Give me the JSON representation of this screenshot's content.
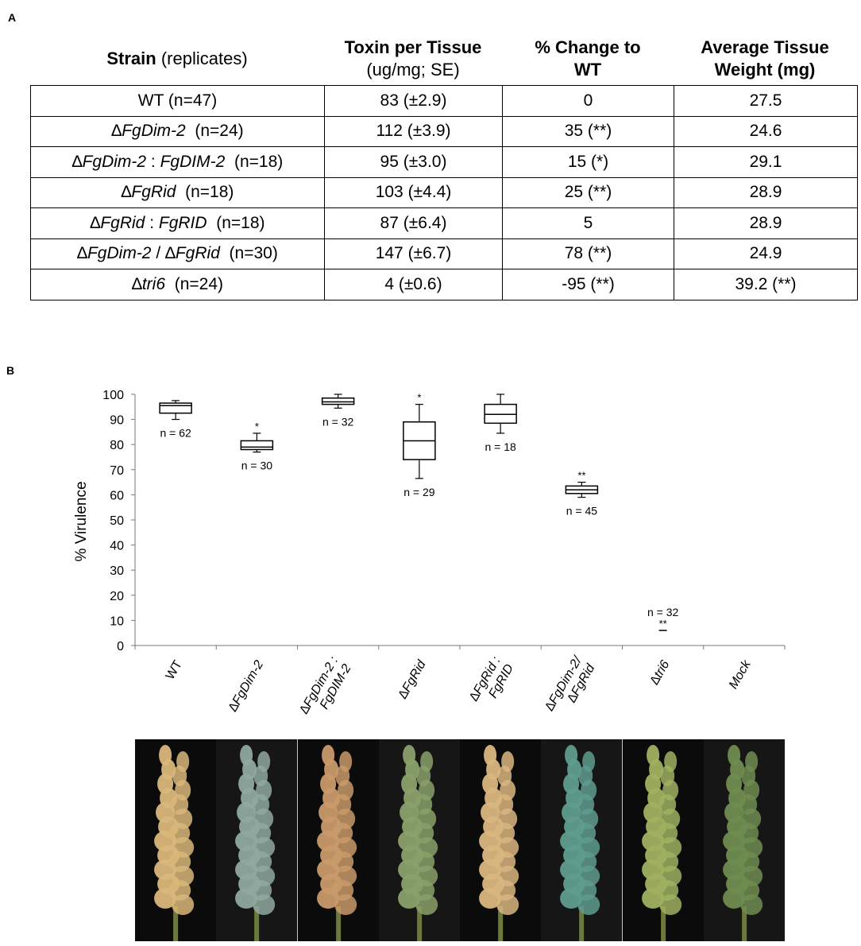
{
  "panel_a": {
    "label": "A",
    "headers": {
      "strain": "Strain",
      "strain_sub": " (replicates)",
      "toxin": "Toxin per Tissue",
      "toxin_sub": "(ug/mg; SE)",
      "change_line1": "% Change to",
      "change_line2": "WT",
      "weight_line1": "Average Tissue",
      "weight_line2": "Weight (mg)"
    },
    "rows": [
      {
        "strain": "WT (n=47)",
        "toxin": "83 (±2.9)",
        "change": "0",
        "weight": "27.5"
      },
      {
        "strain_parts": [
          "∆",
          "FgDim-2",
          "  (n=24)"
        ],
        "toxin": "112 (±3.9)",
        "change": "35 (**)",
        "weight": "24.6"
      },
      {
        "strain_parts": [
          "∆",
          "FgDim-2",
          " : ",
          "FgDIM-2",
          "  (n=18)"
        ],
        "toxin": "95 (±3.0)",
        "change": "15 (*)",
        "weight": "29.1"
      },
      {
        "strain_parts": [
          "∆",
          "FgRid",
          "  (n=18)"
        ],
        "toxin": "103 (±4.4)",
        "change": "25 (**)",
        "weight": "28.9"
      },
      {
        "strain_parts": [
          "∆",
          "FgRid",
          " : ",
          "FgRID",
          "  (n=18)"
        ],
        "toxin": "87 (±6.4)",
        "change": "5",
        "weight": "28.9"
      },
      {
        "strain_parts": [
          "∆",
          "FgDim-2 ",
          "/ ∆",
          "FgRid",
          "  (n=30)"
        ],
        "toxin": "147 (±6.7)",
        "change": "78 (**)",
        "weight": "24.9"
      },
      {
        "strain_parts": [
          "∆",
          "tri6",
          "  (n=24)"
        ],
        "toxin": "4 (±0.6)",
        "change": "-95 (**)",
        "weight": "39.2 (**)"
      }
    ]
  },
  "panel_b": {
    "label": "B"
  },
  "chart_data": {
    "type": "box",
    "ylabel": "% Virulence",
    "ylim": [
      0,
      100
    ],
    "yticks": [
      0,
      10,
      20,
      30,
      40,
      50,
      60,
      70,
      80,
      90,
      100
    ],
    "categories": [
      {
        "label": "WT",
        "lines": [
          "WT"
        ]
      },
      {
        "label": "∆FgDim-2",
        "lines": [
          "∆FgDim-2"
        ]
      },
      {
        "label": "∆FgDim-2 : FgDIM-2",
        "lines": [
          "∆FgDim-2 :",
          "FgDIM-2"
        ]
      },
      {
        "label": "∆FgRid",
        "lines": [
          "∆FgRid"
        ]
      },
      {
        "label": "∆FgRid : FgRID",
        "lines": [
          "∆FgRid :",
          "FgRID"
        ]
      },
      {
        "label": "∆FgDim-2/ ∆FgRid",
        "lines": [
          "∆FgDim-2/",
          "∆FgRid"
        ]
      },
      {
        "label": "∆tri6",
        "lines": [
          "∆tri6"
        ]
      },
      {
        "label": "Mock",
        "lines": [
          "Mock"
        ]
      }
    ],
    "boxes": [
      {
        "min": 90,
        "q1": 92.5,
        "median": 95.5,
        "q3": 96.5,
        "max": 97.5,
        "n": "n = 62",
        "sig": ""
      },
      {
        "min": 77,
        "q1": 78,
        "median": 79,
        "q3": 81.5,
        "max": 84.5,
        "n": "n = 30",
        "sig": "*"
      },
      {
        "min": 94.5,
        "q1": 96,
        "median": 97,
        "q3": 98.5,
        "max": 100,
        "n": "n = 32",
        "sig": ""
      },
      {
        "min": 66.5,
        "q1": 74,
        "median": 81.5,
        "q3": 89,
        "max": 96,
        "n": "n = 29",
        "sig": "*"
      },
      {
        "min": 84.5,
        "q1": 88.5,
        "median": 92,
        "q3": 96,
        "max": 100,
        "n": "n = 18",
        "sig": ""
      },
      {
        "min": 59,
        "q1": 60.5,
        "median": 62,
        "q3": 63.5,
        "max": 65,
        "n": "n = 45",
        "sig": "**"
      },
      {
        "min": 6,
        "q1": 6,
        "median": 6,
        "q3": 6,
        "max": 6,
        "n": "n = 32",
        "sig": "**"
      },
      null
    ]
  },
  "photos": [
    {
      "name": "wheat-head-wt",
      "color": "#d9b77a"
    },
    {
      "name": "wheat-head-fgdim2",
      "color": "#8fa8a0"
    },
    {
      "name": "wheat-head-fgdim2-comp",
      "color": "#c99a6a"
    },
    {
      "name": "wheat-head-fgrid",
      "color": "#8aa06a"
    },
    {
      "name": "wheat-head-fgrid-comp",
      "color": "#d9b680"
    },
    {
      "name": "wheat-head-double",
      "color": "#5f9c8e"
    },
    {
      "name": "wheat-head-tri6",
      "color": "#9fb060"
    },
    {
      "name": "wheat-head-mock",
      "color": "#6f8c50"
    }
  ]
}
